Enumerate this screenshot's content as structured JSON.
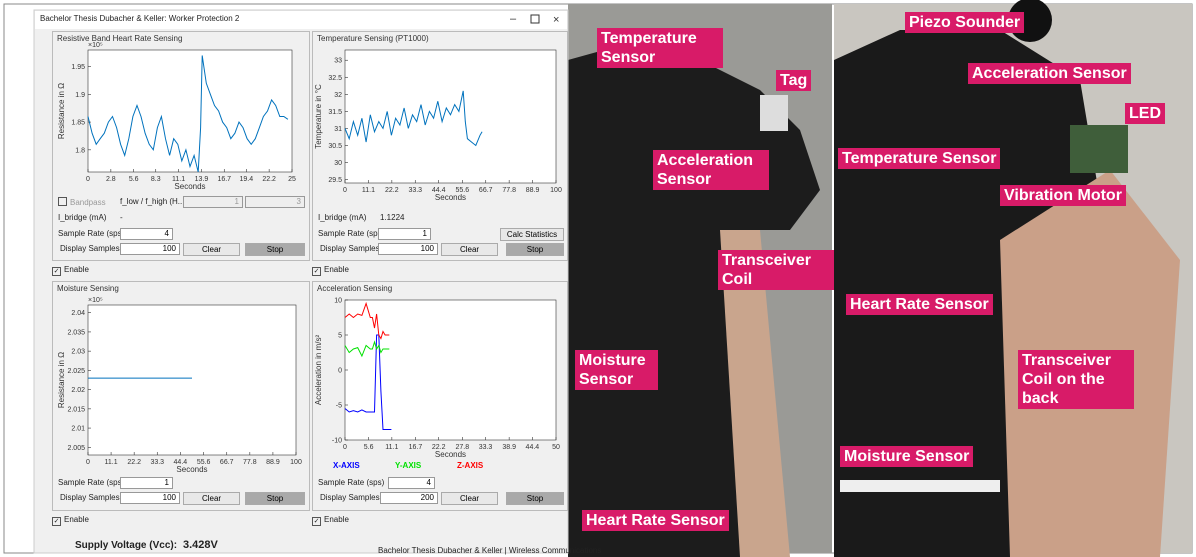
{
  "window": {
    "title": "Bachelor Thesis Dubacher & Keller: Worker Protection 2",
    "supply_label": "Supply Voltage (Vcc):",
    "supply_voltage": "3.428V",
    "footer": "Bachelor Thesis Dubacher & Keller | Wireless Communications"
  },
  "panels": {
    "heart": {
      "title": "Resistive Band Heart Rate Sensing",
      "plot": {
        "type": "line",
        "exponent": "×10⁵",
        "ylabel": "Resistance in Ω",
        "xlabel": "Seconds",
        "xlim": [
          0,
          25
        ],
        "ylim": [
          1.76,
          1.98
        ],
        "xticks": [
          0,
          2.8,
          5.6,
          8.3,
          11.1,
          13.9,
          16.7,
          19.4,
          22.2,
          25
        ],
        "yticks": [
          1.8,
          1.85,
          1.9,
          1.95
        ],
        "x": [
          0,
          0.5,
          1,
          1.5,
          2,
          2.5,
          3,
          3.5,
          4,
          4.5,
          5,
          5.5,
          6,
          6.5,
          7,
          7.5,
          8,
          8.5,
          9,
          9.5,
          10,
          10.5,
          11,
          11.5,
          12,
          12.5,
          13,
          13.5,
          13.8,
          14,
          14.5,
          15,
          15.5,
          16,
          16.5,
          17,
          17.5,
          18,
          18.5,
          19,
          19.5,
          20,
          20.5,
          21,
          21.5,
          22,
          22.5,
          23,
          23.5,
          24,
          24.5
        ],
        "series": [
          {
            "color": "#0072bd",
            "values": [
              1.86,
              1.83,
              1.81,
              1.82,
              1.83,
              1.85,
              1.86,
              1.84,
              1.81,
              1.79,
              1.82,
              1.86,
              1.88,
              1.86,
              1.83,
              1.81,
              1.8,
              1.84,
              1.86,
              1.82,
              1.79,
              1.82,
              1.81,
              1.78,
              1.8,
              1.77,
              1.79,
              1.76,
              1.84,
              1.97,
              1.92,
              1.9,
              1.88,
              1.87,
              1.85,
              1.84,
              1.82,
              1.83,
              1.85,
              1.84,
              1.82,
              1.81,
              1.82,
              1.84,
              1.86,
              1.87,
              1.89,
              1.88,
              1.86,
              1.86,
              1.855
            ]
          }
        ]
      },
      "bandpass": "Bandpass",
      "filter_label": "f_low / f_high (H...",
      "f_low": "1",
      "f_high": "3",
      "ibridge_label": "I_bridge (mA)",
      "ibridge": "-",
      "rate_label": "Sample Rate (sps)",
      "rate": "4",
      "samples_label": "Display Samples",
      "samples": "100",
      "clear": "Clear",
      "stop": "Stop",
      "enable": "Enable"
    },
    "temperature": {
      "title": "Temperature Sensing (PT1000)",
      "plot": {
        "type": "line",
        "ylabel": "Temperature in °C",
        "xlabel": "Seconds",
        "xlim": [
          0,
          100
        ],
        "ylim": [
          29.4,
          33.3
        ],
        "xticks": [
          0,
          11.1,
          22.2,
          33.3,
          44.4,
          55.6,
          66.7,
          77.8,
          88.9,
          100
        ],
        "yticks": [
          29.5,
          30,
          30.5,
          31,
          31.5,
          32,
          32.5,
          33
        ],
        "x": [
          0,
          2,
          4,
          6,
          8,
          10,
          12,
          14,
          16,
          18,
          20,
          22,
          24,
          26,
          28,
          30,
          32,
          34,
          36,
          38,
          40,
          42,
          44,
          46,
          48,
          50,
          52,
          54,
          56,
          57,
          58,
          60,
          62,
          64,
          65
        ],
        "series": [
          {
            "color": "#0072bd",
            "values": [
              31,
              30.7,
              31.2,
              30.8,
              31.3,
              30.6,
              31.4,
              30.9,
              31.2,
              31,
              31.5,
              30.8,
              31.3,
              31.1,
              31.6,
              31,
              31.4,
              31.2,
              31.7,
              31.1,
              31.5,
              31.3,
              31.8,
              31.2,
              31.6,
              31.4,
              31.7,
              31.5,
              32.1,
              31.2,
              30.7,
              30.6,
              30.5,
              30.8,
              30.9
            ]
          }
        ]
      },
      "ibridge_label": "I_bridge (mA)",
      "ibridge": "1.1224",
      "rate_label": "Sample Rate (sps)",
      "rate": "1",
      "samples_label": "Display Samples",
      "samples": "100",
      "clear": "Clear",
      "stats": "Calc Statistics",
      "stop": "Stop",
      "enable": "Enable"
    },
    "moisture": {
      "title": "Moisture Sensing",
      "plot": {
        "type": "line",
        "exponent": "×10⁵",
        "ylabel": "Resistance in Ω",
        "xlabel": "Seconds",
        "xlim": [
          0,
          100
        ],
        "ylim": [
          2.003,
          2.042
        ],
        "xticks": [
          0,
          11.1,
          22.2,
          33.3,
          44.4,
          55.6,
          66.7,
          77.8,
          88.9,
          100
        ],
        "yticks": [
          2.005,
          2.01,
          2.015,
          2.02,
          2.025,
          2.03,
          2.035,
          2.04
        ],
        "x": [
          0,
          50
        ],
        "series": [
          {
            "color": "#0072bd",
            "values": [
              2.023,
              2.023
            ]
          }
        ]
      },
      "rate_label": "Sample Rate (sps)",
      "rate": "1",
      "samples_label": "Display Samples",
      "samples": "100",
      "clear": "Clear",
      "stop": "Stop",
      "enable": "Enable"
    },
    "acceleration": {
      "title": "Acceleration Sensing",
      "plot": {
        "type": "line",
        "ylabel": "Acceleration in m/s²",
        "xlabel": "Seconds",
        "xlim": [
          0,
          50
        ],
        "ylim": [
          -10,
          10
        ],
        "xticks": [
          0,
          5.6,
          11.1,
          16.7,
          22.2,
          27.8,
          33.3,
          38.9,
          44.4,
          50
        ],
        "yticks": [
          -10,
          -5,
          0,
          5,
          10
        ],
        "x": [
          0,
          1,
          2,
          3,
          4,
          5,
          6,
          6.5,
          7,
          7.5,
          8,
          8.5,
          9,
          9.5,
          10,
          10.5,
          11
        ],
        "series": [
          {
            "name": "X-AXIS",
            "color": "#0000ff",
            "values": [
              -5.5,
              -6,
              -5.8,
              -6,
              -5.7,
              -6,
              -6,
              -6,
              -6,
              5,
              5,
              -3,
              -8.5,
              -8.5,
              -8.5,
              -8.5,
              -8.5
            ]
          },
          {
            "name": "Y-AXIS",
            "color": "#00e000",
            "values": [
              3.5,
              2.5,
              3,
              3.2,
              2,
              3.5,
              3,
              3,
              4,
              3,
              3.5,
              2.5,
              3,
              3,
              3,
              3,
              null
            ]
          },
          {
            "name": "Z-AXIS",
            "color": "#ff0000",
            "values": [
              7.5,
              8,
              7.5,
              8,
              7.8,
              9.5,
              7.5,
              7.5,
              6,
              8,
              5,
              4.5,
              5.5,
              5,
              5,
              5,
              null
            ]
          }
        ]
      },
      "rate_label": "Sample Rate (sps)",
      "rate": "4",
      "samples_label": "Display Samples",
      "samples": "200",
      "clear": "Clear",
      "stop": "Stop",
      "enable": "Enable"
    }
  },
  "photo_labels": [
    "Temperature Sensor",
    "Tag",
    "Acceleration Sensor",
    "Transceiver Coil",
    "Moisture Sensor",
    "Heart Rate Sensor",
    "Piezo Sounder",
    "Acceleration Sensor",
    "LED",
    "Temperature Sensor",
    "Vibration Motor",
    "Heart Rate Sensor",
    "Transceiver Coil on the back",
    "Moisture Sensor"
  ]
}
